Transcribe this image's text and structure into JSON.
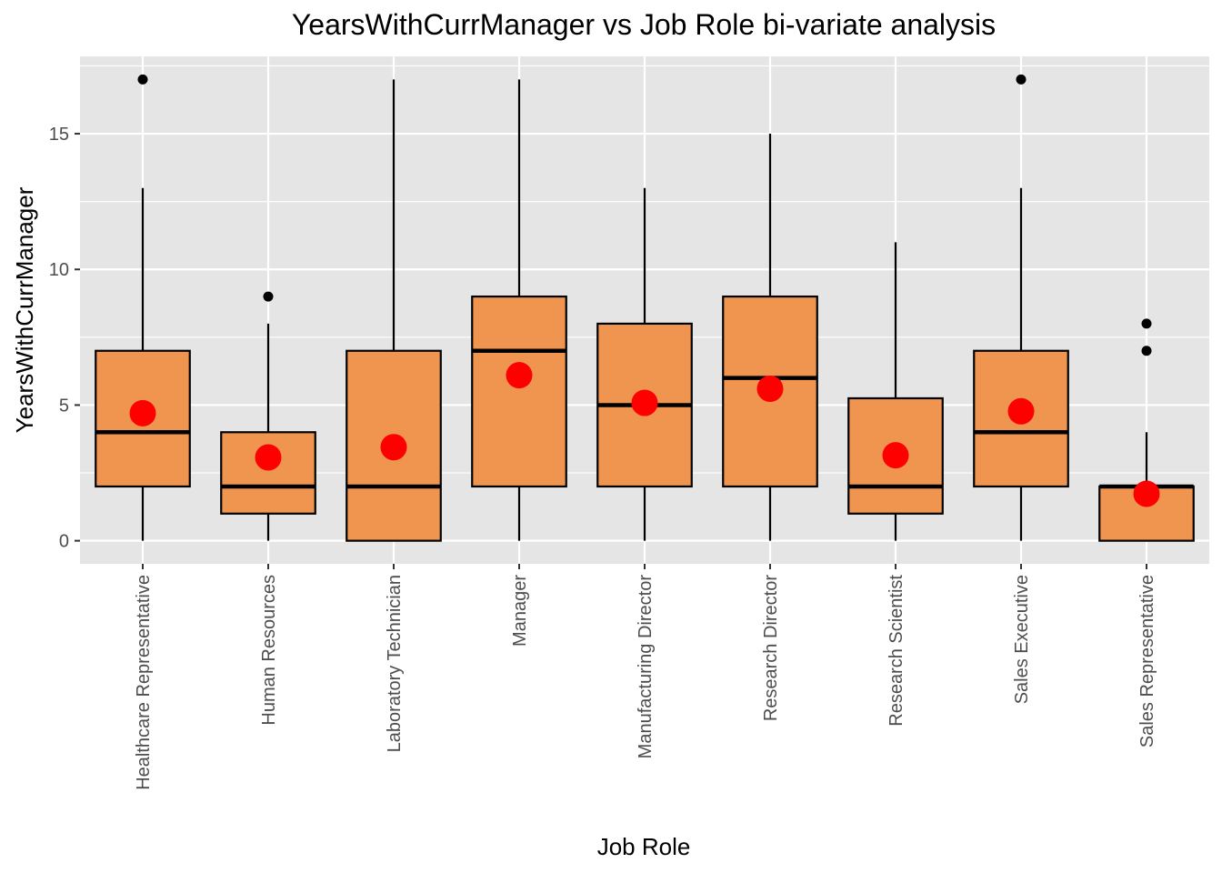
{
  "chart_data": {
    "type": "box",
    "title": "YearsWithCurrManager vs Job Role bi-variate analysis",
    "xlabel": "Job Role",
    "ylabel": "YearsWithCurrManager",
    "ylim": [
      -0.85,
      17.85
    ],
    "yticks": [
      0,
      5,
      10,
      15
    ],
    "ytick_labels": [
      "0",
      "5",
      "10",
      "15"
    ],
    "grid": true,
    "legend": "none",
    "colors": {
      "panel": "#e5e5e5",
      "grid": "#ffffff",
      "box_fill": "#f0954f",
      "box_stroke": "#000000",
      "mean_point": "#ff0000",
      "outlier": "#000000"
    },
    "categories": [
      "Healthcare Representative",
      "Human Resources",
      "Laboratory Technician",
      "Manager",
      "Manufacturing Director",
      "Research Director",
      "Research Scientist",
      "Sales Executive",
      "Sales Representative"
    ],
    "boxes": [
      {
        "whisker_low": 0,
        "q1": 2,
        "median": 4,
        "q3": 7,
        "whisker_high": 13,
        "mean": 4.7,
        "outliers": [
          17
        ]
      },
      {
        "whisker_low": 0,
        "q1": 1,
        "median": 2,
        "q3": 4,
        "whisker_high": 8,
        "mean": 3.07,
        "outliers": [
          9
        ]
      },
      {
        "whisker_low": 0,
        "q1": 0,
        "median": 2,
        "q3": 7,
        "whisker_high": 17,
        "mean": 3.45,
        "outliers": []
      },
      {
        "whisker_low": 0,
        "q1": 2,
        "median": 7,
        "q3": 9,
        "whisker_high": 17,
        "mean": 6.1,
        "outliers": []
      },
      {
        "whisker_low": 0,
        "q1": 2,
        "median": 5,
        "q3": 8,
        "whisker_high": 13,
        "mean": 5.08,
        "outliers": []
      },
      {
        "whisker_low": 0,
        "q1": 2,
        "median": 6,
        "q3": 9,
        "whisker_high": 15,
        "mean": 5.6,
        "outliers": []
      },
      {
        "whisker_low": 0,
        "q1": 1,
        "median": 2,
        "q3": 5.25,
        "whisker_high": 11,
        "mean": 3.15,
        "outliers": []
      },
      {
        "whisker_low": 0,
        "q1": 2,
        "median": 4,
        "q3": 7,
        "whisker_high": 13,
        "mean": 4.77,
        "outliers": [
          17
        ]
      },
      {
        "whisker_low": 0,
        "q1": 0,
        "median": 2,
        "q3": 2,
        "whisker_high": 4,
        "mean": 1.73,
        "outliers": [
          7,
          8
        ]
      }
    ]
  }
}
